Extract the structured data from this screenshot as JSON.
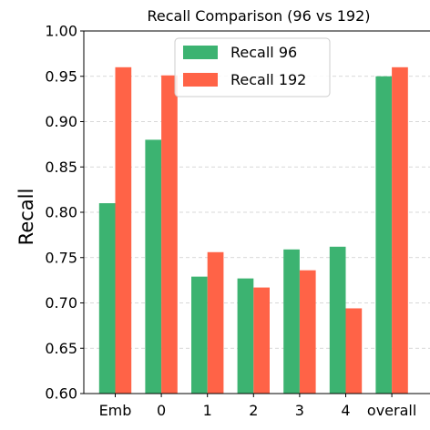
{
  "chart_data": {
    "type": "bar",
    "title": "Recall Comparison (96 vs 192)",
    "xlabel": "",
    "ylabel": "Recall",
    "categories": [
      "Emb",
      "0",
      "1",
      "2",
      "3",
      "4",
      "overall"
    ],
    "series": [
      {
        "name": "Recall 96",
        "color": "#3cb371",
        "values": [
          0.81,
          0.88,
          0.729,
          0.727,
          0.759,
          0.762,
          0.95
        ]
      },
      {
        "name": "Recall 192",
        "color": "#ff6347",
        "values": [
          0.96,
          0.951,
          0.756,
          0.717,
          0.736,
          0.694,
          0.96
        ]
      }
    ],
    "ylim": [
      0.6,
      1.0
    ],
    "yticks": [
      "0.60",
      "0.65",
      "0.70",
      "0.75",
      "0.80",
      "0.85",
      "0.90",
      "0.95",
      "1.00"
    ],
    "grid": "y-dashed",
    "legend_position": "top-center"
  }
}
